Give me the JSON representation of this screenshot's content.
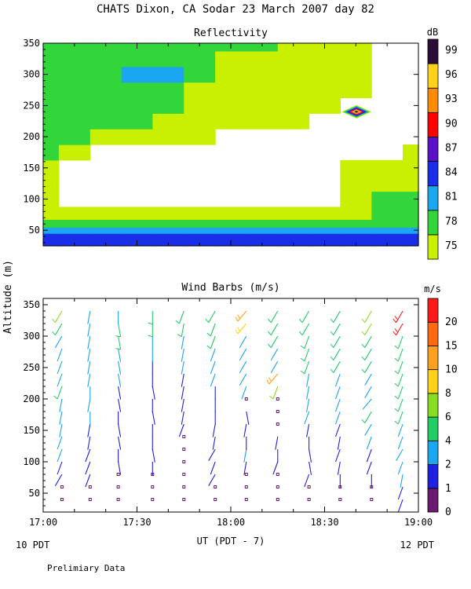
{
  "header": {
    "title": "CHATS Dixon, CA  Sodar  23 March 2007  day  82",
    "shared_ylabel": "Altitude (m)",
    "xlabel": "UT  (PDT - 7)",
    "left_local_label": "10 PDT",
    "right_local_label": "12 PDT",
    "footer_note": "Prelimiary Data"
  },
  "chart_data": [
    {
      "type": "heatmap",
      "title": "Reflectivity",
      "x_ticks": [
        "17:00",
        "17:30",
        "18:00",
        "18:30",
        "19:00"
      ],
      "xlim_hours": [
        17.0,
        19.0
      ],
      "ylim": [
        25,
        350
      ],
      "y_ticks": [
        50,
        100,
        150,
        200,
        250,
        300,
        350
      ],
      "colorbar": {
        "unit": "dB",
        "levels": [
          75,
          78,
          81,
          84,
          87,
          90,
          93,
          96,
          99
        ],
        "colors": [
          "#c8f000",
          "#33d63a",
          "#1aa6f0",
          "#1a2ee8",
          "#5a11c8",
          "#ff0000",
          "#ff8c00",
          "#ffd21a",
          "#2a0e3a"
        ]
      },
      "times_hours": [
        17.0,
        17.1667,
        17.3333,
        17.5,
        17.6667,
        17.8333,
        18.0,
        18.1667,
        18.3333,
        18.5,
        18.6667,
        18.8333,
        19.0
      ],
      "altitudes": [
        40,
        50,
        60,
        75,
        100,
        125,
        150,
        175,
        200,
        225,
        250,
        275,
        300,
        325,
        350
      ],
      "values": [
        [
          84,
          84,
          84,
          84,
          84,
          84,
          84,
          84,
          84,
          84,
          84,
          84,
          84
        ],
        [
          81,
          81,
          81,
          81,
          81,
          81,
          81,
          81,
          81,
          81,
          81,
          81,
          81
        ],
        [
          78,
          78,
          78,
          78,
          78,
          78,
          78,
          78,
          78,
          78,
          78,
          78,
          78
        ],
        [
          75,
          75,
          75,
          75,
          75,
          75,
          75,
          75,
          75,
          75,
          75,
          78,
          78
        ],
        [
          75,
          0,
          0,
          0,
          0,
          0,
          0,
          0,
          0,
          0,
          75,
          78,
          78
        ],
        [
          75,
          0,
          0,
          0,
          0,
          0,
          0,
          0,
          0,
          0,
          75,
          75,
          75
        ],
        [
          75,
          0,
          0,
          0,
          0,
          0,
          0,
          0,
          0,
          0,
          75,
          75,
          75
        ],
        [
          78,
          75,
          0,
          0,
          0,
          0,
          0,
          0,
          0,
          0,
          0,
          0,
          75
        ],
        [
          78,
          78,
          75,
          75,
          75,
          75,
          0,
          0,
          0,
          0,
          0,
          0,
          0
        ],
        [
          78,
          78,
          78,
          78,
          75,
          75,
          75,
          75,
          75,
          0,
          0,
          0,
          0
        ],
        [
          78,
          78,
          78,
          78,
          78,
          75,
          75,
          75,
          75,
          75,
          0,
          0,
          0
        ],
        [
          78,
          78,
          78,
          78,
          78,
          75,
          75,
          75,
          75,
          75,
          75,
          0,
          0
        ],
        [
          78,
          78,
          78,
          81,
          81,
          78,
          75,
          75,
          75,
          75,
          75,
          0,
          0
        ],
        [
          78,
          78,
          78,
          78,
          78,
          78,
          75,
          75,
          75,
          75,
          75,
          0,
          0
        ],
        [
          78,
          78,
          78,
          78,
          78,
          78,
          78,
          78,
          75,
          75,
          75,
          0,
          0
        ]
      ]
    },
    {
      "type": "scatter",
      "title": "Wind Barbs (m/s)",
      "x_ticks": [
        "17:00",
        "17:30",
        "18:00",
        "18:30",
        "19:00"
      ],
      "xlim_hours": [
        17.0,
        19.0
      ],
      "ylim": [
        20,
        360
      ],
      "y_ticks": [
        50,
        100,
        150,
        200,
        250,
        300,
        350
      ],
      "colorbar": {
        "unit": "m/s",
        "levels": [
          0,
          1,
          2,
          4,
          6,
          8,
          10,
          15,
          20
        ],
        "colors": [
          "#6a1a72",
          "#2020e0",
          "#1aa6f0",
          "#22cc66",
          "#88dd22",
          "#ffd21a",
          "#ffa020",
          "#ff6a10",
          "#ff1a1a"
        ]
      },
      "times_hours": [
        17.1,
        17.25,
        17.4,
        17.583,
        17.75,
        17.917,
        18.083,
        18.25,
        18.4167,
        18.583,
        18.75,
        18.9167
      ],
      "altitudes": [
        40,
        60,
        80,
        100,
        120,
        140,
        160,
        180,
        200,
        220,
        240,
        260,
        280,
        300,
        320,
        340
      ],
      "speed": [
        [
          0,
          0,
          0,
          0,
          0,
          0,
          0,
          0,
          0,
          0,
          0,
          1
        ],
        [
          0,
          0,
          0,
          0,
          0,
          0,
          0,
          0,
          0,
          0,
          0,
          1
        ],
        [
          1,
          1,
          0,
          0,
          0,
          1,
          0,
          0,
          1,
          1,
          1,
          2
        ],
        [
          1,
          1,
          1,
          1,
          0,
          1,
          1,
          1,
          1,
          1,
          1,
          2
        ],
        [
          2,
          1,
          1,
          1,
          0,
          1,
          2,
          1,
          1,
          1,
          1,
          2
        ],
        [
          2,
          1,
          1,
          1,
          0,
          1,
          1,
          1,
          1,
          1,
          2,
          2
        ],
        [
          2,
          1,
          1,
          1,
          1,
          1,
          1,
          0,
          1,
          1,
          2,
          2
        ],
        [
          2,
          2,
          1,
          1,
          1,
          1,
          1,
          0,
          2,
          2,
          4,
          4
        ],
        [
          2,
          2,
          1,
          1,
          1,
          1,
          0,
          0,
          2,
          2,
          2,
          4
        ],
        [
          4,
          2,
          1,
          1,
          1,
          1,
          2,
          6,
          2,
          2,
          2,
          4
        ],
        [
          2,
          2,
          2,
          1,
          1,
          2,
          2,
          10,
          2,
          2,
          2,
          4
        ],
        [
          2,
          2,
          2,
          1,
          2,
          2,
          2,
          2,
          4,
          4,
          4,
          4
        ],
        [
          2,
          2,
          2,
          2,
          2,
          2,
          2,
          2,
          4,
          4,
          4,
          4
        ],
        [
          2,
          2,
          4,
          2,
          2,
          4,
          2,
          4,
          4,
          4,
          4,
          4
        ],
        [
          4,
          2,
          4,
          4,
          4,
          4,
          8,
          4,
          4,
          4,
          6,
          20
        ],
        [
          6,
          2,
          2,
          4,
          4,
          4,
          10,
          4,
          4,
          4,
          6,
          20
        ]
      ],
      "direction_deg": [
        [
          0,
          0,
          0,
          0,
          0,
          0,
          0,
          0,
          0,
          0,
          0,
          200
        ],
        [
          0,
          0,
          0,
          0,
          0,
          0,
          0,
          0,
          0,
          0,
          0,
          200
        ],
        [
          210,
          200,
          0,
          0,
          0,
          210,
          0,
          0,
          200,
          180,
          180,
          190
        ],
        [
          200,
          200,
          170,
          180,
          0,
          200,
          190,
          200,
          170,
          190,
          200,
          200
        ],
        [
          200,
          200,
          180,
          170,
          0,
          210,
          190,
          180,
          170,
          200,
          200,
          210
        ],
        [
          200,
          190,
          170,
          180,
          0,
          190,
          180,
          190,
          180,
          190,
          200,
          200
        ],
        [
          190,
          190,
          170,
          180,
          200,
          190,
          190,
          0,
          190,
          200,
          210,
          200
        ],
        [
          190,
          180,
          180,
          170,
          190,
          180,
          170,
          0,
          200,
          200,
          210,
          200
        ],
        [
          190,
          190,
          170,
          180,
          190,
          180,
          0,
          0,
          190,
          200,
          220,
          200
        ],
        [
          200,
          180,
          170,
          170,
          190,
          180,
          200,
          200,
          190,
          200,
          210,
          200
        ],
        [
          200,
          190,
          170,
          180,
          190,
          200,
          210,
          220,
          190,
          200,
          210,
          200
        ],
        [
          200,
          190,
          170,
          180,
          190,
          200,
          210,
          210,
          200,
          210,
          210,
          200
        ],
        [
          200,
          190,
          170,
          180,
          190,
          200,
          210,
          210,
          200,
          210,
          210,
          200
        ],
        [
          210,
          190,
          170,
          180,
          190,
          200,
          210,
          210,
          200,
          210,
          210,
          200
        ],
        [
          210,
          190,
          170,
          180,
          190,
          200,
          220,
          210,
          210,
          210,
          210,
          210
        ],
        [
          210,
          190,
          180,
          180,
          200,
          210,
          220,
          210,
          210,
          210,
          210,
          210
        ]
      ]
    }
  ]
}
